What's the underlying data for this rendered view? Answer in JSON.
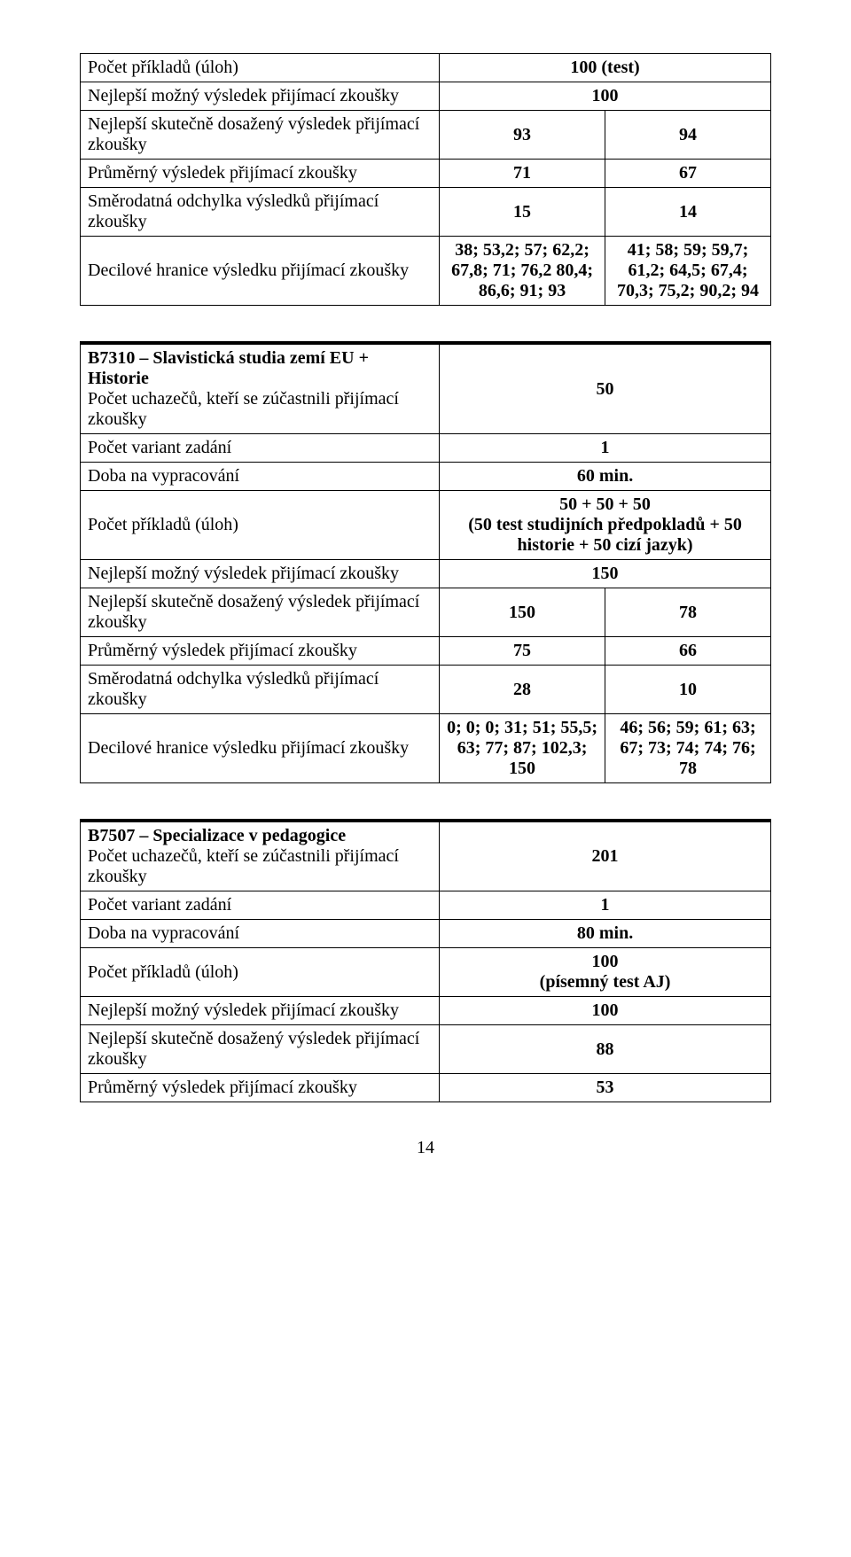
{
  "table1": {
    "rows": [
      {
        "label": "Počet příkladů (úloh)",
        "v": "100 (test)",
        "bold": true
      },
      {
        "label": "Nejlepší možný výsledek přijímací zkoušky",
        "v": "100",
        "bold": true
      },
      {
        "label": "Nejlepší skutečně dosažený výsledek přijímací zkoušky",
        "v1": "93",
        "v2": "94",
        "bold": true
      },
      {
        "label": "Průměrný výsledek přijímací zkoušky",
        "v1": "71",
        "v2": "67",
        "bold": true
      },
      {
        "label": "Směrodatná odchylka výsledků přijímací zkoušky",
        "v1": "15",
        "v2": "14",
        "bold": true
      },
      {
        "label": "Decilové hranice výsledku přijímací zkoušky",
        "v1": "38; 53,2; 57; 62,2; 67,8; 71; 76,2 80,4; 86,6; 91; 93",
        "v2": "41; 58; 59; 59,7; 61,2; 64,5; 67,4; 70,3; 75,2; 90,2; 94",
        "bold": true
      }
    ]
  },
  "table2": {
    "header": "B7310 – Slavistická studia zemí EU + Historie",
    "rows": [
      {
        "label": "Počet uchazečů, kteří se zúčastnili přijímací zkoušky",
        "v": "50",
        "bold": true
      },
      {
        "label": "Počet variant zadání",
        "v": "1",
        "bold": true
      },
      {
        "label": "Doba na vypracování",
        "v": "60 min.",
        "bold": true
      },
      {
        "label": "Počet příkladů (úloh)",
        "v": "50 + 50 + 50\n(50 test studijních předpokladů + 50 historie + 50 cizí jazyk)",
        "bold": true
      },
      {
        "label": "Nejlepší možný výsledek přijímací zkoušky",
        "v": "150",
        "bold": true
      },
      {
        "label": "Nejlepší skutečně dosažený výsledek přijímací zkoušky",
        "v1": "150",
        "v2": "78",
        "bold": true
      },
      {
        "label": "Průměrný výsledek přijímací zkoušky",
        "v1": "75",
        "v2": "66",
        "bold": true
      },
      {
        "label": "Směrodatná odchylka výsledků přijímací zkoušky",
        "v1": "28",
        "v2": "10",
        "bold": true
      },
      {
        "label": "Decilové hranice výsledku přijímací zkoušky",
        "v1": "0; 0; 0; 31; 51; 55,5; 63; 77; 87; 102,3; 150",
        "v2": "46; 56; 59; 61; 63; 67; 73; 74; 74; 76; 78",
        "bold": true
      }
    ]
  },
  "table3": {
    "header": "B7507 – Specializace v pedagogice",
    "rows": [
      {
        "label": "Počet uchazečů, kteří se zúčastnili přijímací zkoušky",
        "v": "201",
        "bold": true
      },
      {
        "label": "Počet variant zadání",
        "v": "1",
        "bold": true
      },
      {
        "label": "Doba na vypracování",
        "v": "80 min.",
        "bold": true
      },
      {
        "label": "Počet příkladů (úloh)",
        "v": "100\n(písemný test AJ)",
        "bold": true
      },
      {
        "label": "Nejlepší možný výsledek přijímací zkoušky",
        "v": "100",
        "bold": true
      },
      {
        "label": "Nejlepší skutečně dosažený výsledek přijímací zkoušky",
        "v": "88",
        "bold": true
      },
      {
        "label": "Průměrný výsledek přijímací zkoušky",
        "v": "53",
        "bold": true
      }
    ]
  },
  "pageNumber": "14"
}
